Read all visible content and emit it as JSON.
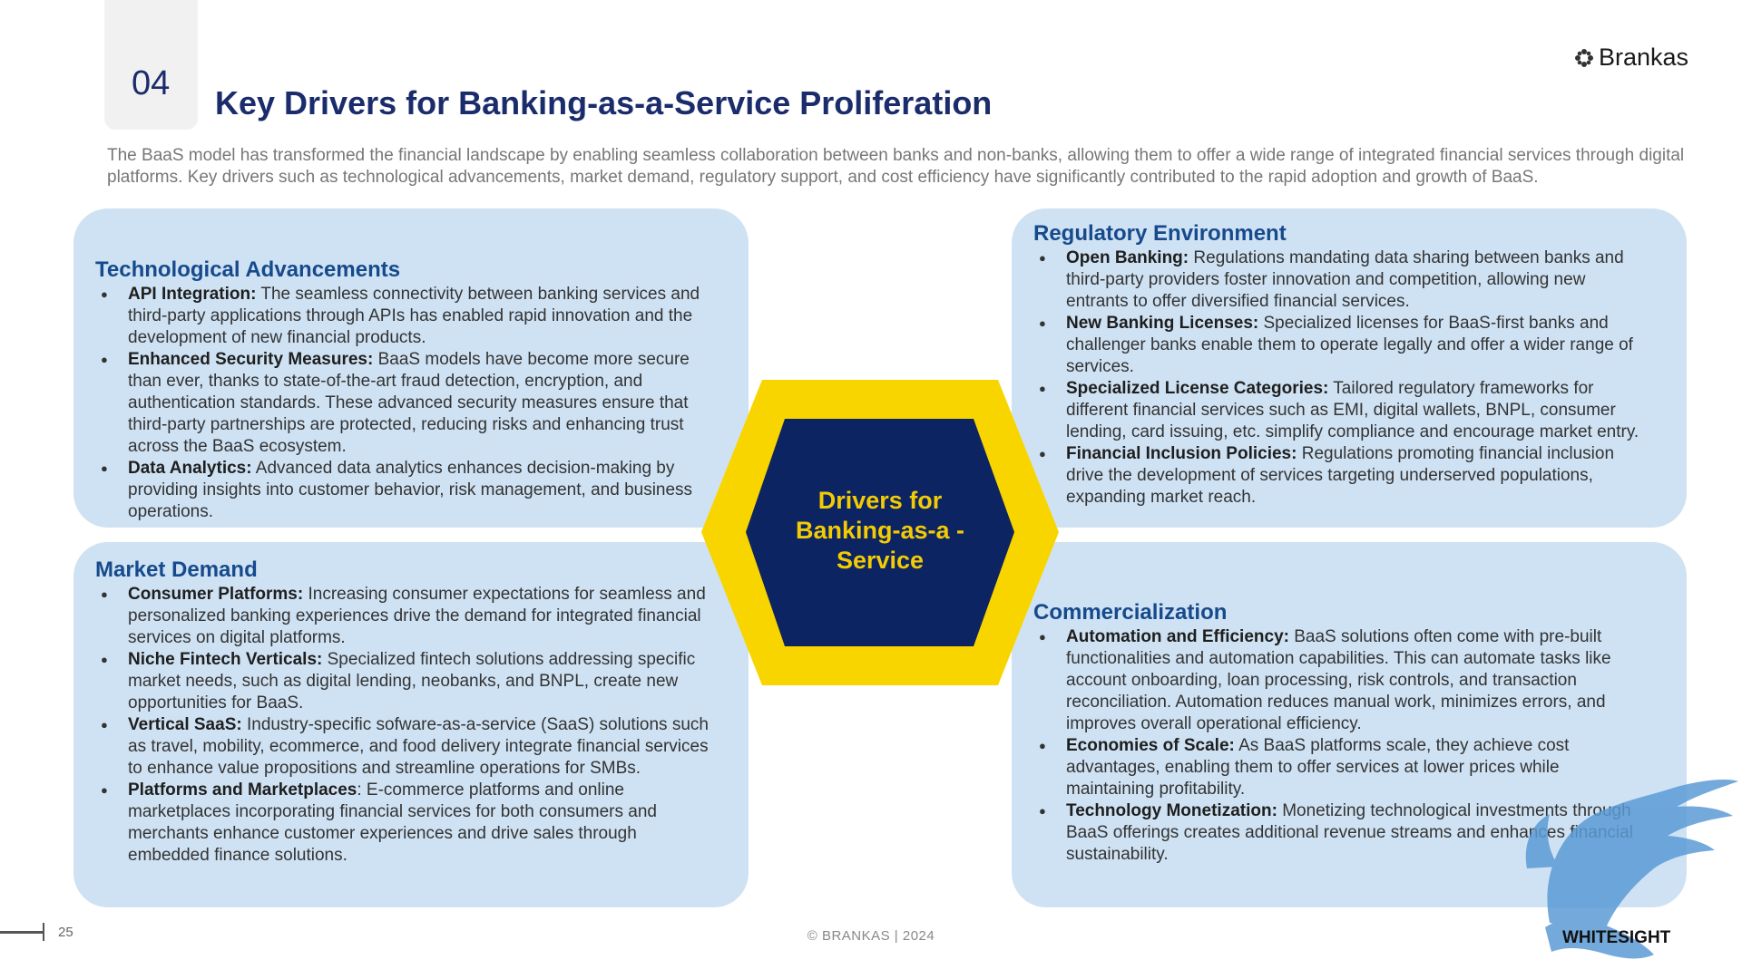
{
  "slide": {
    "number": "04",
    "title": "Key Drivers for Banking-as-a-Service Proliferation",
    "intro": "The BaaS model has transformed the financial landscape by enabling seamless collaboration between banks and non-banks, allowing them to offer a wide range of integrated financial services through digital platforms. Key drivers such as technological advancements, market demand, regulatory support, and cost efficiency have significantly contributed to the rapid adoption and growth of BaaS."
  },
  "logo": {
    "text": "Brankas",
    "icon": "brankas-flower-icon"
  },
  "center": {
    "label": "Drivers for Banking-as-a -Service",
    "outer_color": "#f9d500",
    "inner_color": "#0c2461",
    "text_color": "#f2cb05"
  },
  "cards": {
    "technological": {
      "title": "Technological Advancements",
      "items": [
        {
          "head": "API Integration:",
          "text": " The seamless connectivity between banking services and third-party applications through APIs has enabled rapid innovation and the development of new financial products."
        },
        {
          "head": "Enhanced Security Measures:",
          "text": " BaaS models have become more secure than ever, thanks to state-of-the-art fraud detection, encryption, and authentication standards. These advanced security measures ensure that third-party partnerships are protected, reducing risks and enhancing trust across the BaaS ecosystem."
        },
        {
          "head": "Data Analytics:",
          "text": " Advanced data analytics enhances decision-making by providing insights into customer behavior, risk management, and business operations."
        }
      ]
    },
    "market": {
      "title": "Market Demand",
      "items": [
        {
          "head": "Consumer Platforms:",
          "text": " Increasing consumer expectations for seamless and personalized banking experiences drive the demand for integrated financial services on digital platforms."
        },
        {
          "head": "Niche Fintech Verticals:",
          "text": " Specialized fintech solutions addressing specific market needs, such as digital  lending, neobanks, and BNPL, create new opportunities for BaaS."
        },
        {
          "head": "Vertical SaaS:",
          "text": " Industry-specific sofware-as-a-service (SaaS) solutions such as travel, mobility,  ecommerce, and food delivery integrate financial services to enhance value propositions and streamline operations for SMBs."
        },
        {
          "head": "Platforms and Marketplaces",
          "text": ": E-commerce platforms and online marketplaces incorporating financial services for both consumers and merchants enhance customer experiences and drive sales through embedded finance solutions."
        }
      ]
    },
    "regulatory": {
      "title": "Regulatory Environment",
      "items": [
        {
          "head": "Open Banking:",
          "text": " Regulations mandating data sharing between banks and third-party providers foster innovation and competition, allowing new entrants to offer diversified financial services."
        },
        {
          "head": "New Banking Licenses:",
          "text": " Specialized licenses for BaaS-first banks and challenger banks enable them to operate legally and offer a wider range of services."
        },
        {
          "head": "Specialized License Categories:",
          "text": " Tailored regulatory frameworks for different financial services such as EMI, digital wallets, BNPL, consumer lending, card issuing, etc. simplify compliance and encourage market entry."
        },
        {
          "head": "Financial Inclusion Policies:",
          "text": " Regulations promoting financial inclusion drive the development of services targeting underserved populations, expanding market reach."
        }
      ]
    },
    "commercialization": {
      "title": "Commercialization",
      "items": [
        {
          "head": "Automation and Efficiency:",
          "text": "  BaaS solutions often come with pre-built functionalities and automation capabilities. This can automate tasks like account onboarding, loan processing, risk controls, and transaction reconciliation. Automation reduces manual work, minimizes errors, and improves overall operational efficiency."
        },
        {
          "head": "Economies of Scale:",
          "text": " As BaaS platforms scale, they achieve cost advantages, enabling them to offer services at lower prices while maintaining profitability."
        },
        {
          "head": "Technology Monetization:",
          "text": " Monetizing technological investments through BaaS offerings creates additional revenue streams and enhances financial sustainability."
        }
      ]
    }
  },
  "footer": {
    "page": "25",
    "copyright": "© BRANKAS | 2024",
    "watermark_text": "WHITESIGHT",
    "watermark_icon": "griffin-watermark-icon"
  }
}
